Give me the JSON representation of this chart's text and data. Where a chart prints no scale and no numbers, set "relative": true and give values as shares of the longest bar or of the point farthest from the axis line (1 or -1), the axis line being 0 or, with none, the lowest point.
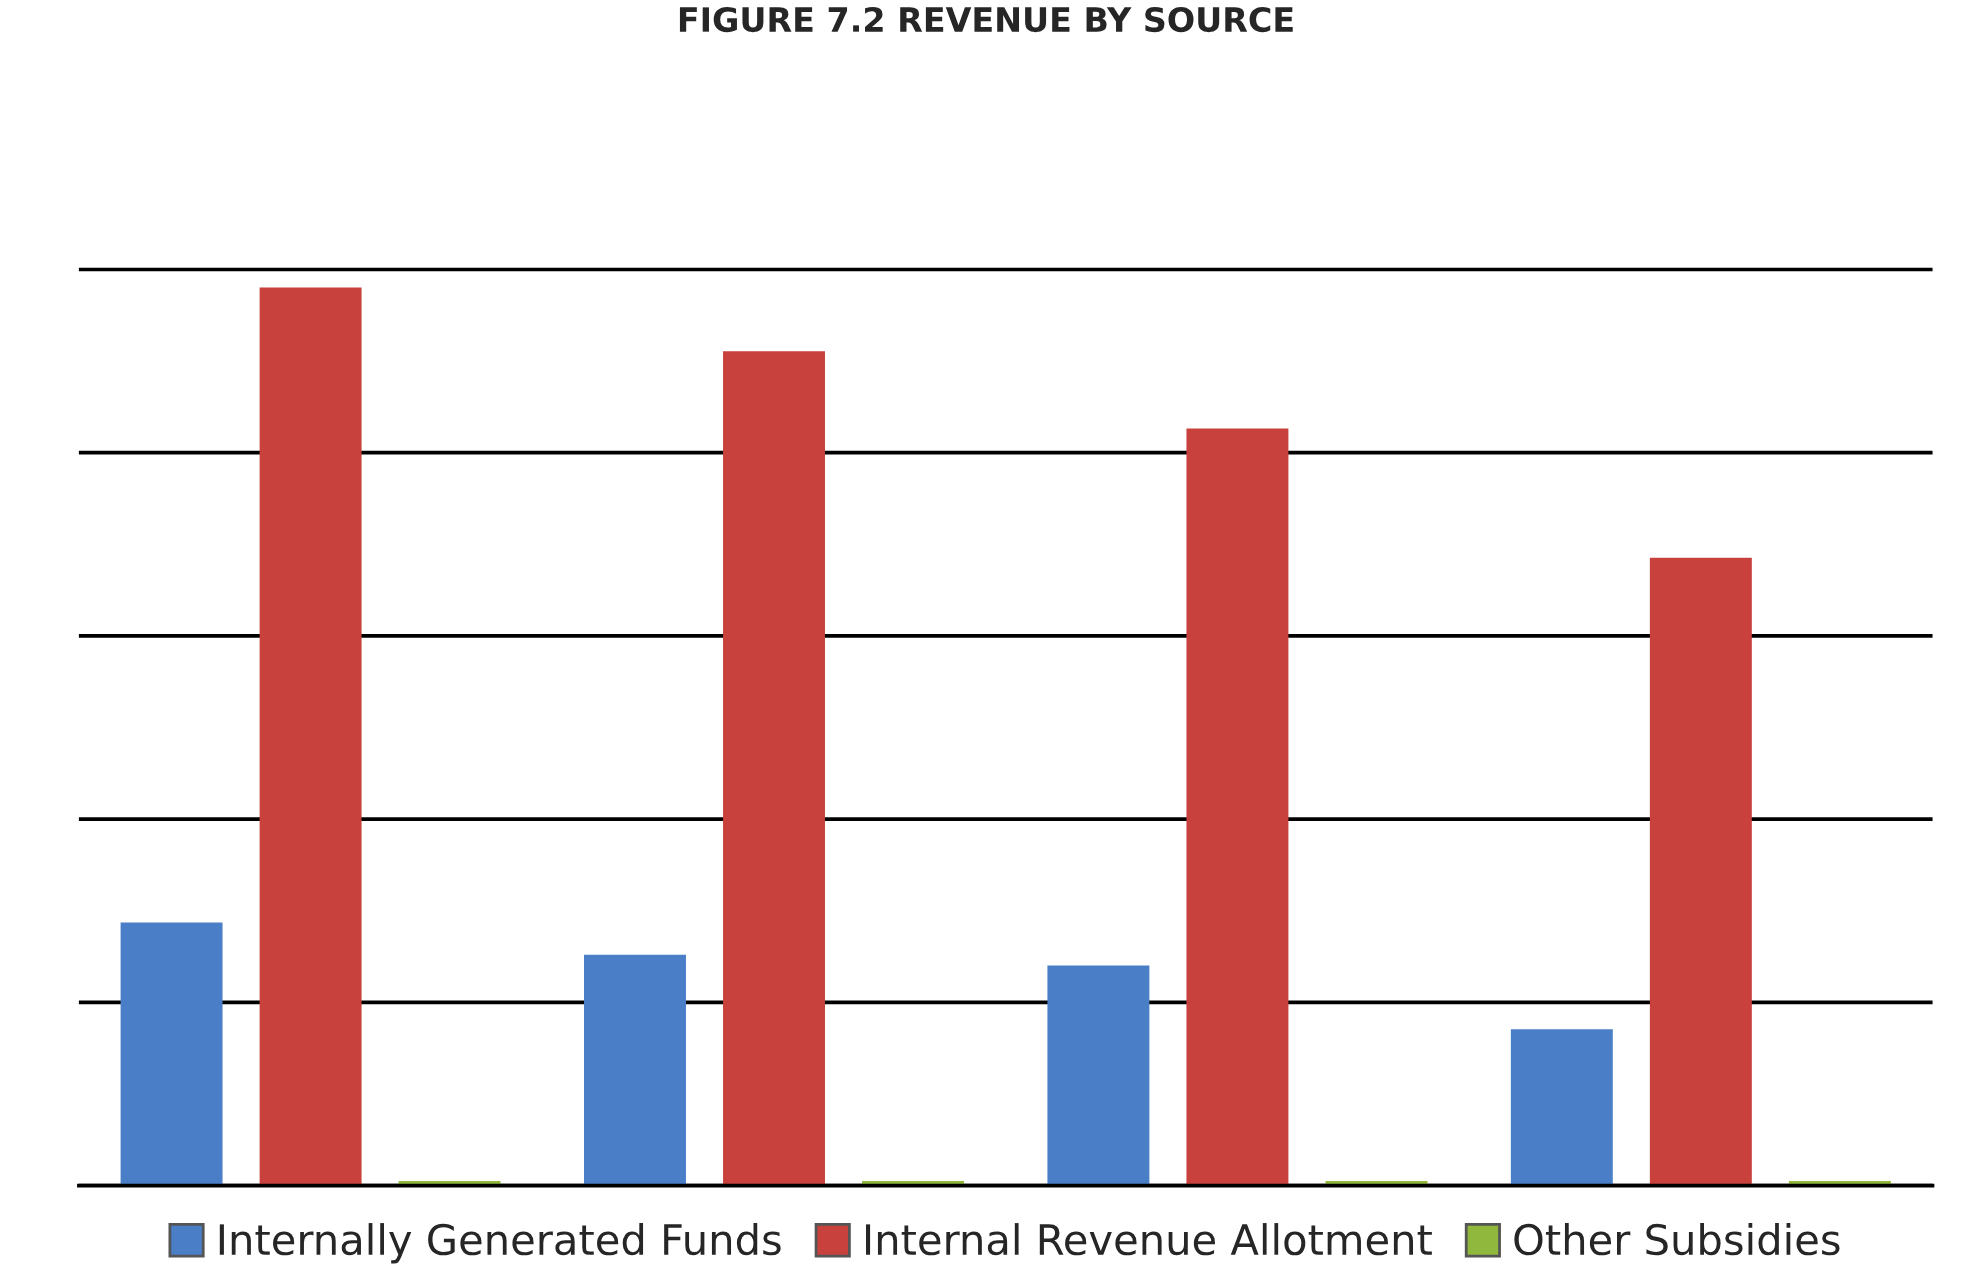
{
  "chart_data": {
    "type": "bar",
    "title": "FIGURE 7.2 REVENUE BY SOURCE",
    "relative": true,
    "categories": [
      null,
      null,
      null,
      null
    ],
    "series": [
      {
        "name": "Internally Generated Funds",
        "color": "#4a7fc8",
        "values": [
          0.293,
          0.257,
          0.245,
          0.174
        ]
      },
      {
        "name": "Internal Revenue Allotment",
        "color": "#c8413d",
        "values": [
          1,
          0.929,
          0.843,
          0.699
        ]
      },
      {
        "name": "Other Subsidies",
        "color": "#8fb83c",
        "values": [
          0.005,
          0.005,
          0.005,
          0.005
        ]
      }
    ],
    "grid": "y",
    "legend": "bottom"
  }
}
